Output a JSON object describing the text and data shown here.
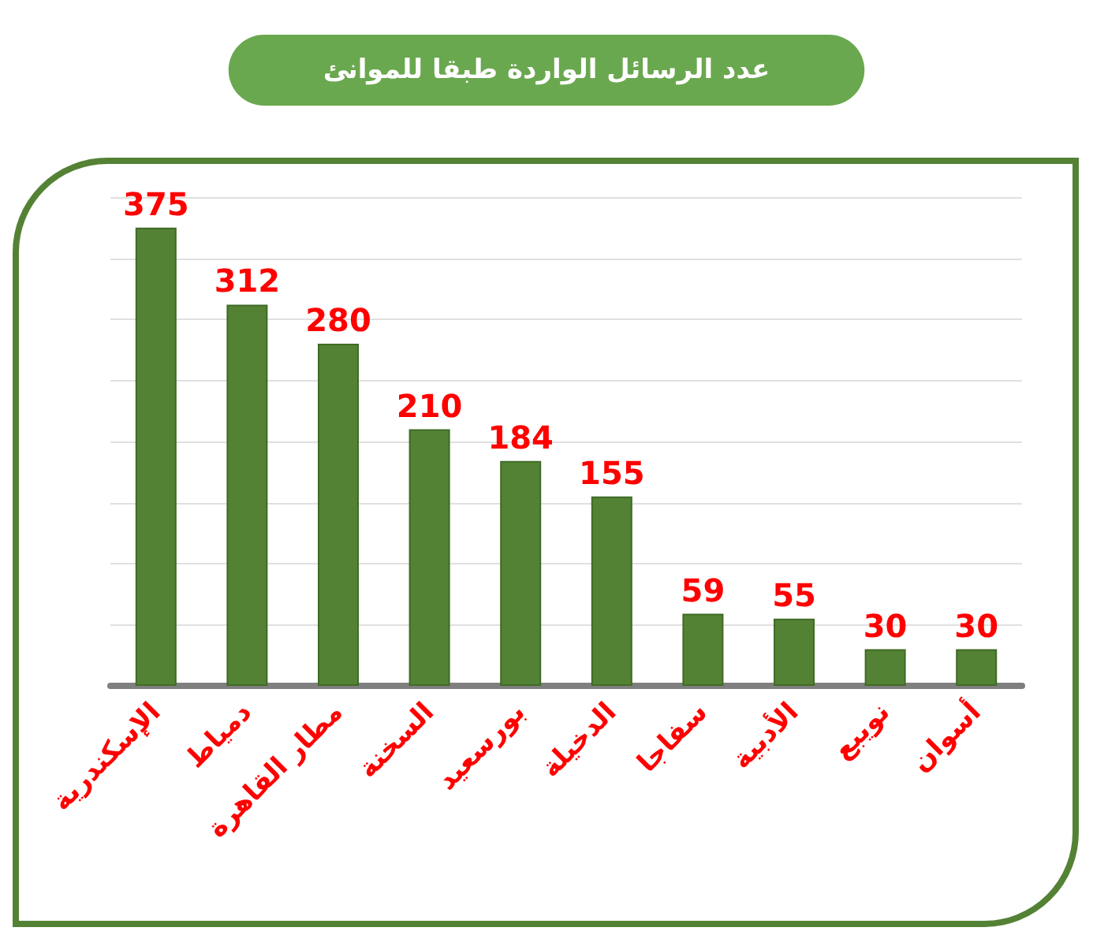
{
  "chart_data": {
    "type": "bar",
    "title": "عدد الرسائل الواردة طبقا للموانئ",
    "categories": [
      "الإسكندرية",
      "دمياط",
      "مطار القاهرة",
      "السخنة",
      "بورسعيد",
      "الدخيلة",
      "سفاجا",
      "الأدبية",
      "نويبع",
      "أسوان"
    ],
    "values": [
      375,
      312,
      280,
      210,
      184,
      155,
      59,
      55,
      30,
      30
    ],
    "color": "#548235",
    "ylim": [
      0,
      400
    ],
    "yticks": [
      {
        "value": 0,
        "label": null
      },
      {
        "value": 50,
        "label": null
      },
      {
        "value": 100,
        "label": null
      },
      {
        "value": 150,
        "label": null
      },
      {
        "value": 200,
        "label": null
      },
      {
        "value": 250,
        "label": null
      },
      {
        "value": 300,
        "label": null
      },
      {
        "value": 350,
        "label": null
      },
      {
        "value": 400,
        "label": null
      }
    ],
    "grid": "y",
    "tick_labels": "x",
    "data_labels": true
  }
}
